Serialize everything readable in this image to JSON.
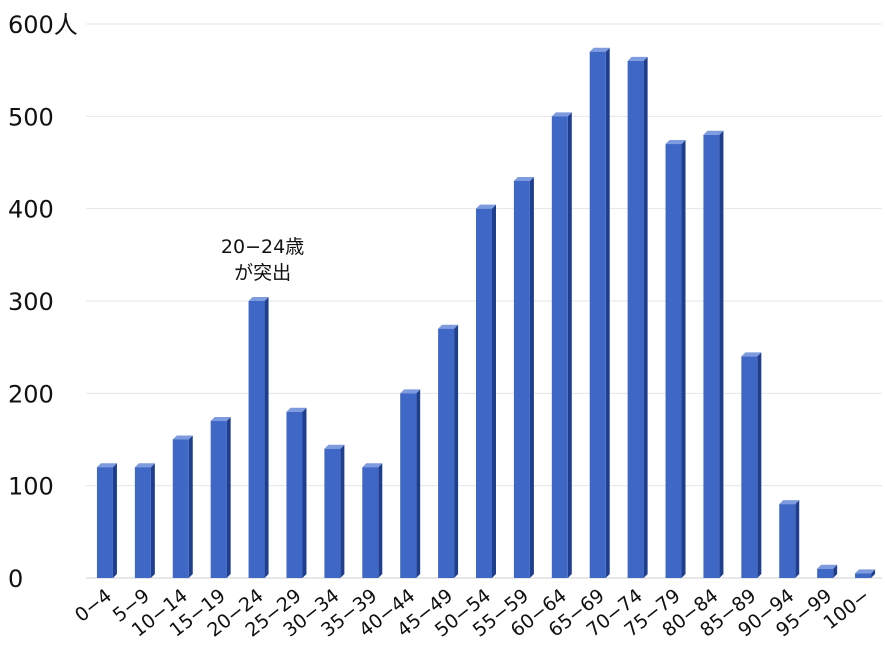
{
  "chart_data": {
    "type": "bar",
    "title": "",
    "xlabel": "",
    "ylabel": "",
    "y_unit": "人",
    "ylim": [
      0,
      600
    ],
    "yticks": [
      0,
      100,
      200,
      300,
      400,
      500,
      600
    ],
    "ytick_labels": [
      "0",
      "100",
      "200",
      "300",
      "400",
      "500",
      "600人"
    ],
    "grid": true,
    "legend": "none",
    "bar_color": "#3f68c6",
    "bar_side_color": "#1f3f8e",
    "bar_top_color": "#7e9be0",
    "categories": [
      "0−4",
      "5−9",
      "10−14",
      "15−19",
      "20−24",
      "25−29",
      "30−34",
      "35−39",
      "40−44",
      "45−49",
      "50−54",
      "55−59",
      "60−64",
      "65−69",
      "70−74",
      "75−79",
      "80−84",
      "85−89",
      "90−94",
      "95−99",
      "100−"
    ],
    "values": [
      120,
      120,
      150,
      170,
      300,
      180,
      140,
      120,
      200,
      270,
      400,
      430,
      500,
      570,
      560,
      470,
      480,
      240,
      80,
      10,
      5
    ],
    "annotation": {
      "category": "20−24",
      "lines": [
        "20−24歳",
        "が突出"
      ]
    }
  }
}
